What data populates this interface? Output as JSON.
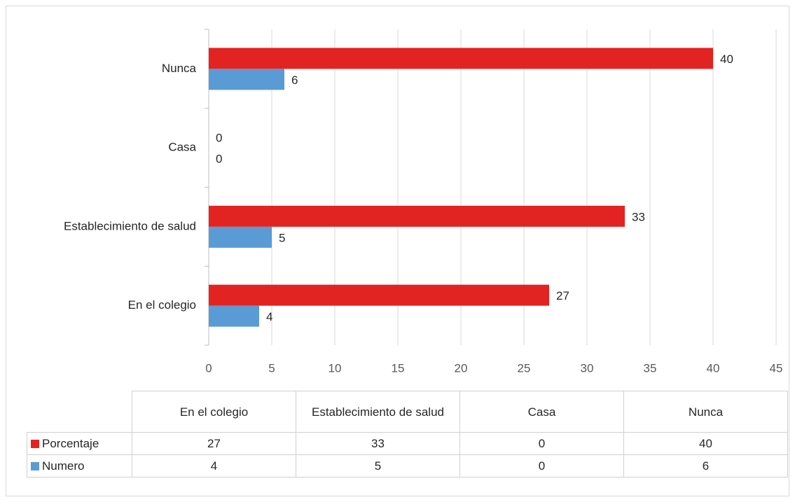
{
  "chart_data": {
    "type": "bar",
    "orientation": "horizontal",
    "categories": [
      "En el colegio",
      "Establecimiento de salud",
      "Casa",
      "Nunca"
    ],
    "series": [
      {
        "name": "Porcentaje",
        "color": "#e32322",
        "values": [
          27,
          33,
          0,
          40
        ]
      },
      {
        "name": "Numero",
        "color": "#5b9bd5",
        "values": [
          4,
          5,
          0,
          6
        ]
      }
    ],
    "xlim": [
      0,
      45
    ],
    "xticks": [
      0,
      5,
      10,
      15,
      20,
      25,
      30,
      35,
      40,
      45
    ],
    "grid": true,
    "data_labels": true,
    "data_table": true
  }
}
